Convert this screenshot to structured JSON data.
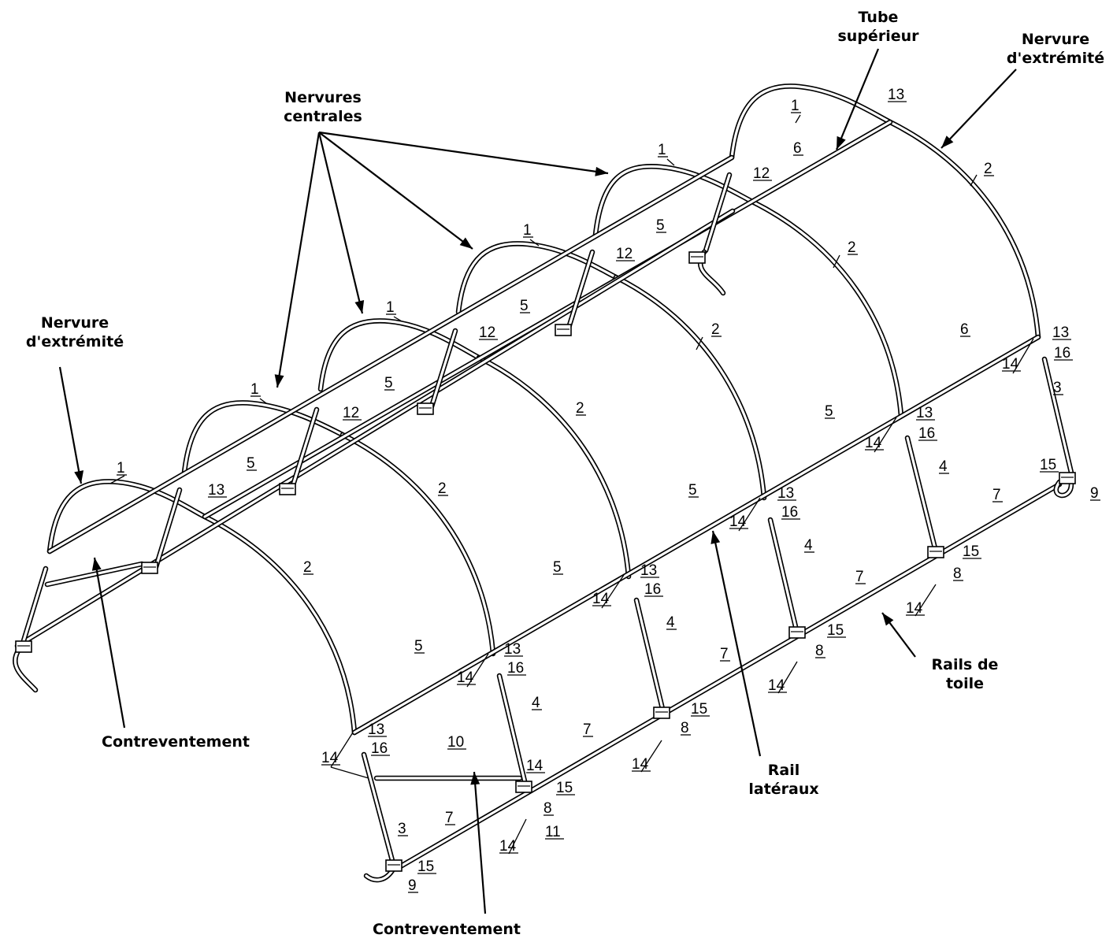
{
  "callouts": {
    "tube_superieur": [
      "Tube",
      "supérieur"
    ],
    "nervure_extremite_right": [
      "Nervure",
      "d'extrémité"
    ],
    "nervures_centrales": [
      "Nervures",
      "centrales"
    ],
    "nervure_extremite_left": [
      "Nervure",
      "d'extrémité"
    ],
    "contreventement_left": [
      "Contreventement"
    ],
    "contreventement_bottom": [
      "Contreventement"
    ],
    "rail_lateraux": [
      "Rail",
      "latéraux"
    ],
    "rails_de_toile": [
      "Rails de",
      "toile"
    ]
  },
  "part_labels": {
    "p1": "1",
    "p2": "2",
    "p3": "3",
    "p4": "4",
    "p5": "5",
    "p6": "6",
    "p7": "7",
    "p8": "8",
    "p9": "9",
    "p10": "10",
    "p11": "11",
    "p12": "12",
    "p13": "13",
    "p14": "14",
    "p15": "15",
    "p16": "16"
  }
}
